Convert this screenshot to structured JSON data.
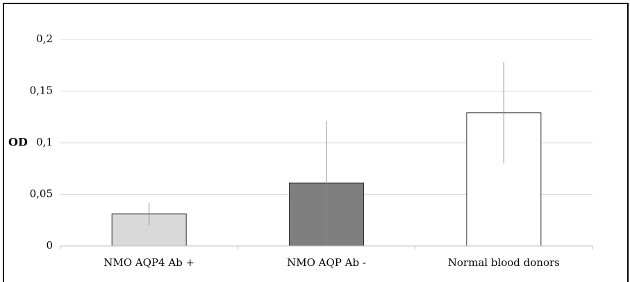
{
  "chart_data": {
    "type": "bar",
    "title": "",
    "xlabel": "",
    "ylabel": "OD",
    "ylim": [
      0,
      0.2
    ],
    "yticks": [
      0,
      0.05,
      0.1,
      0.15,
      0.2
    ],
    "ytick_labels": [
      "0",
      "0,05",
      "0,1",
      "0,15",
      "0,2"
    ],
    "grid": true,
    "categories": [
      "NMO AQP4 Ab +",
      "NMO AQP Ab -",
      "Normal blood donors"
    ],
    "values": [
      0.031,
      0.061,
      0.129
    ],
    "error_low": [
      0.02,
      0.0,
      0.08
    ],
    "error_high": [
      0.042,
      0.121,
      0.178
    ],
    "bar_colors": [
      "#d9d9d9",
      "#7f7f7f",
      "#ffffff"
    ],
    "bar_edge_color": "#333333",
    "grid_color": "#d9d9d9"
  }
}
